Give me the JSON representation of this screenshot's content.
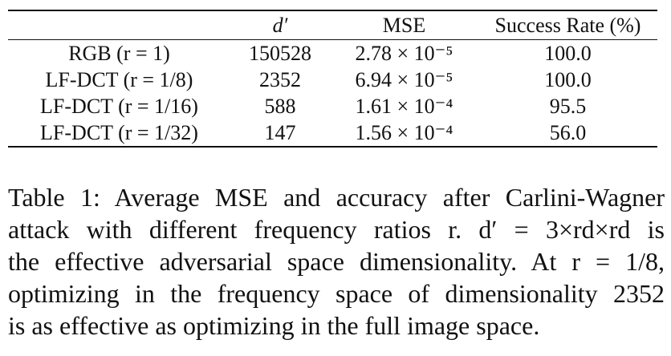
{
  "table": {
    "headers": [
      "",
      "d′",
      "MSE",
      "Success Rate (%)"
    ],
    "rows": [
      {
        "method": "RGB (r = 1)",
        "d_prime": "150528",
        "mse": "2.78 × 10⁻⁵",
        "success_rate": "100.0"
      },
      {
        "method": "LF-DCT (r = 1/8)",
        "d_prime": "2352",
        "mse": "6.94 × 10⁻⁵",
        "success_rate": "100.0"
      },
      {
        "method": "LF-DCT (r = 1/16)",
        "d_prime": "588",
        "mse": "1.61 × 10⁻⁴",
        "success_rate": "95.5"
      },
      {
        "method": "LF-DCT (r = 1/32)",
        "d_prime": "147",
        "mse": "1.56 × 10⁻⁴",
        "success_rate": "56.0"
      }
    ]
  },
  "caption": {
    "lines": [
      "Table 1: Average MSE and accuracy after Carlini-Wagner",
      "attack with different frequency ratios r. d′ = 3×rd×rd is",
      "the effective adversarial space dimensionality. At r = 1/8,",
      "optimizing in the frequency space of dimensionality 2352",
      "is as effective as optimizing in the full image space."
    ]
  }
}
